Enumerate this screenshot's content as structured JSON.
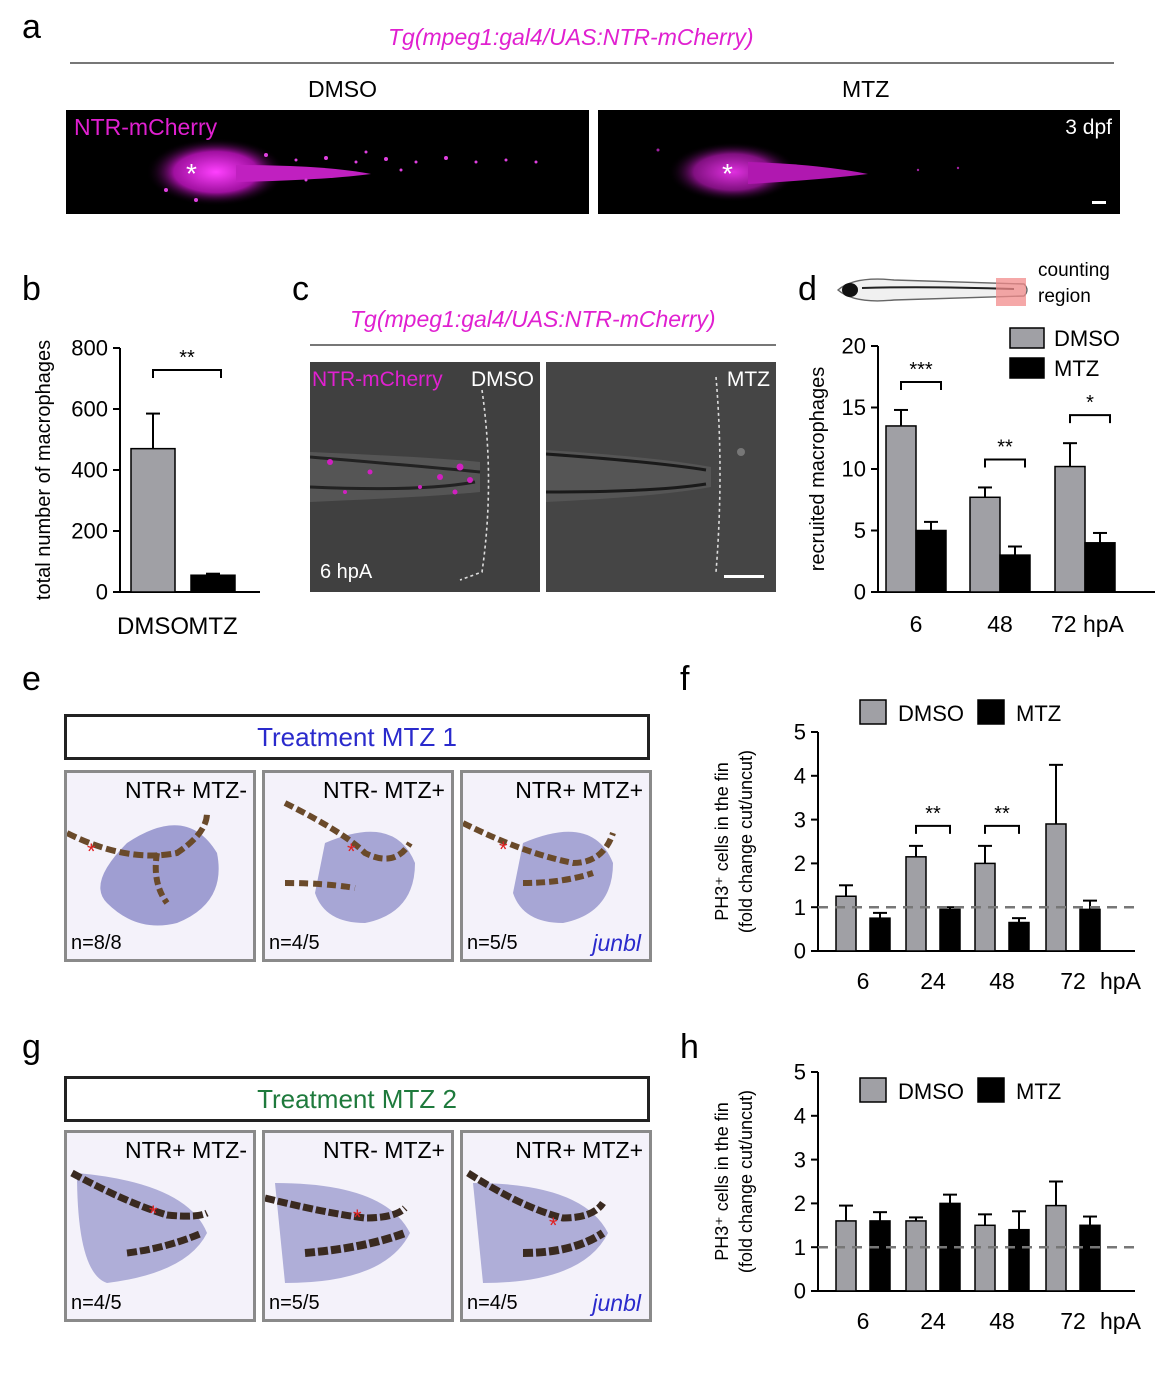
{
  "panels": {
    "a": "a",
    "b": "b",
    "c": "c",
    "d": "d",
    "e": "e",
    "f": "f",
    "g": "g",
    "h": "h"
  },
  "panel_a": {
    "title": "Tg(mpeg1:gal4/UAS:NTR-mCherry)",
    "left_header": "DMSO",
    "right_header": "MTZ",
    "channel_label": "NTR-mCherry",
    "stage_label": "3 dpf",
    "asterisk": "*"
  },
  "panel_c": {
    "title": "Tg(mpeg1:gal4/UAS:NTR-mCherry)",
    "channel_label": "NTR-mCherry",
    "left_label": "DMSO",
    "right_label": "MTZ",
    "time_label": "6 hpA"
  },
  "panel_d_header": {
    "counting": "counting",
    "region": "region"
  },
  "panel_e": {
    "treatment": "Treatment MTZ 1",
    "treatment_color": "#2a2acc",
    "images": [
      {
        "label": "NTR+ MTZ-",
        "n": "n=8/8"
      },
      {
        "label": "NTR- MTZ+",
        "n": "n=4/5"
      },
      {
        "label": "NTR+ MTZ+",
        "n": "n=5/5",
        "gene": "junbl"
      }
    ]
  },
  "panel_g": {
    "treatment": "Treatment MTZ 2",
    "treatment_color": "#1e7a3c",
    "images": [
      {
        "label": "NTR+ MTZ-",
        "n": "n=4/5"
      },
      {
        "label": "NTR- MTZ+",
        "n": "n=5/5"
      },
      {
        "label": "NTR+ MTZ+",
        "n": "n=4/5",
        "gene": "junbl"
      }
    ]
  },
  "chart_data": [
    {
      "id": "b",
      "type": "bar",
      "categories": [
        "DMSO",
        "MTZ"
      ],
      "values": [
        470,
        55
      ],
      "errors": [
        115,
        5
      ],
      "colors": [
        "#a0a0a5",
        "#000000"
      ],
      "ylabel": "total number of macrophages",
      "ylim": [
        0,
        800
      ],
      "yticks": [
        0,
        200,
        400,
        600,
        800
      ],
      "significance": [
        {
          "from": 0,
          "to": 1,
          "label": "**"
        }
      ]
    },
    {
      "id": "d",
      "type": "bar",
      "categories": [
        "6",
        "48",
        "72 hpA"
      ],
      "series": [
        {
          "name": "DMSO",
          "values": [
            13.5,
            7.7,
            10.2
          ],
          "errors": [
            1.3,
            0.8,
            1.9
          ],
          "color": "#a0a0a5"
        },
        {
          "name": "MTZ",
          "values": [
            5.0,
            3.0,
            4.0
          ],
          "errors": [
            0.7,
            0.7,
            0.8
          ],
          "color": "#000000"
        }
      ],
      "ylabel": "recruited macrophages",
      "ylim": [
        0,
        20
      ],
      "yticks": [
        0,
        5,
        10,
        15,
        20
      ],
      "significance": [
        "***",
        "**",
        "*"
      ],
      "legend": "top-right"
    },
    {
      "id": "f",
      "type": "bar",
      "categories": [
        "6",
        "24",
        "48",
        "72"
      ],
      "x_unit": "hpA",
      "series": [
        {
          "name": "DMSO",
          "values": [
            1.25,
            2.15,
            2.0,
            2.9
          ],
          "errors": [
            0.25,
            0.25,
            0.4,
            1.35
          ],
          "color": "#a0a0a5"
        },
        {
          "name": "MTZ",
          "values": [
            0.75,
            0.95,
            0.65,
            0.95
          ],
          "errors": [
            0.12,
            0.05,
            0.1,
            0.2
          ],
          "color": "#000000"
        }
      ],
      "ylabel_line1": "PH3⁺ cells in the fin",
      "ylabel_line2": "(fold change cut/uncut)",
      "ylim": [
        0,
        5
      ],
      "yticks": [
        0,
        1,
        2,
        3,
        4,
        5
      ],
      "reference_line": 1,
      "significance": [
        "",
        "**",
        "**",
        ""
      ],
      "legend": "top"
    },
    {
      "id": "h",
      "type": "bar",
      "categories": [
        "6",
        "24",
        "48",
        "72"
      ],
      "x_unit": "hpA",
      "series": [
        {
          "name": "DMSO",
          "values": [
            1.6,
            1.6,
            1.5,
            1.95
          ],
          "errors": [
            0.35,
            0.08,
            0.25,
            0.55
          ],
          "color": "#a0a0a5"
        },
        {
          "name": "MTZ",
          "values": [
            1.6,
            2.0,
            1.4,
            1.5
          ],
          "errors": [
            0.2,
            0.2,
            0.42,
            0.2
          ],
          "color": "#000000"
        }
      ],
      "ylabel_line1": "PH3⁺ cells in the fin",
      "ylabel_line2": "(fold change cut/uncut)",
      "ylim": [
        0,
        5
      ],
      "yticks": [
        0,
        1,
        2,
        3,
        4,
        5
      ],
      "reference_line": 1,
      "legend": "top"
    }
  ]
}
